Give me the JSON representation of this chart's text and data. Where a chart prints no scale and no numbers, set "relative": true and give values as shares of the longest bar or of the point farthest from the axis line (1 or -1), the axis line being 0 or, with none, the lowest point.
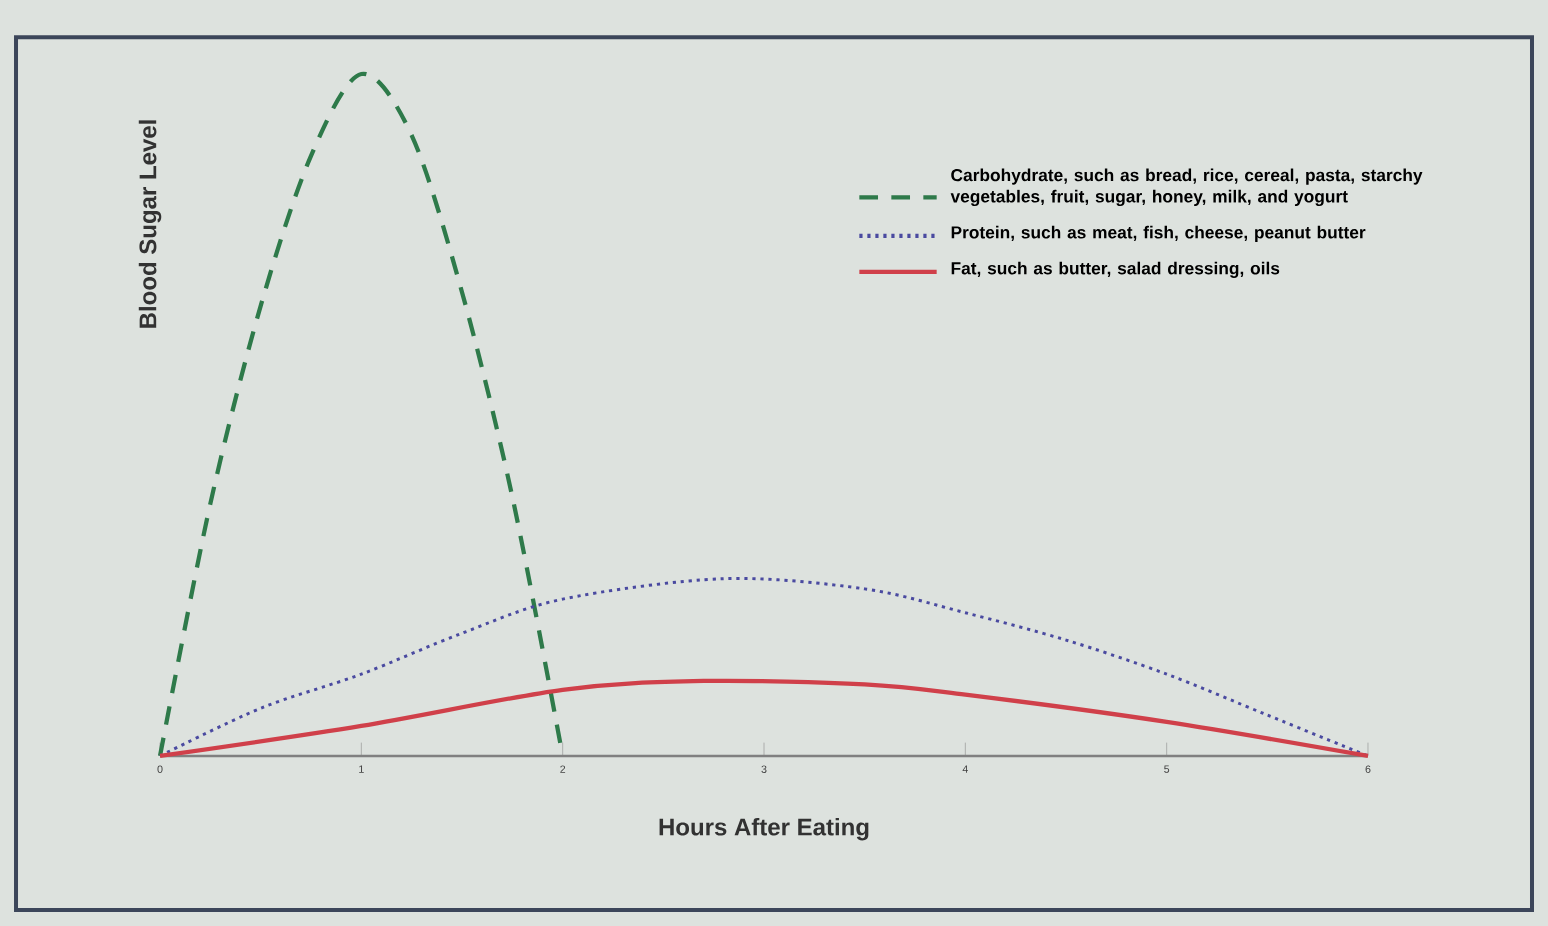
{
  "chart_data": {
    "type": "line",
    "relative": true,
    "xlabel": "Hours After Eating",
    "ylabel": "Blood Sugar Level",
    "xlim": [
      0,
      6
    ],
    "xticks": [
      0,
      1,
      2,
      3,
      4,
      5,
      6
    ],
    "legend": "top right",
    "series": [
      {
        "name": "Carbohydrate, such as bread, rice, cereal, pasta, starchy vegetables, fruit, sugar, honey, milk, and yogurt",
        "color": "#2e7a4a",
        "line_style": "dashed",
        "x": [
          0,
          0.25,
          0.5,
          0.75,
          1,
          1.25,
          1.5,
          1.75,
          2
        ],
        "values": [
          0,
          0.37,
          0.66,
          0.88,
          1,
          0.91,
          0.68,
          0.38,
          0
        ]
      },
      {
        "name": "Protein, such as meat, fish, cheese, peanut butter",
        "color": "#4a4aa0",
        "line_style": "dotted",
        "x": [
          0,
          0.5,
          1,
          1.5,
          2,
          2.8,
          3.5,
          4,
          4.5,
          5,
          5.5,
          6
        ],
        "values": [
          0,
          0.07,
          0.12,
          0.18,
          0.23,
          0.26,
          0.245,
          0.21,
          0.17,
          0.12,
          0.06,
          0
        ]
      },
      {
        "name": "Fat, such as butter, salad dressing, oils",
        "color": "#d0404a",
        "line_style": "solid",
        "x": [
          0,
          1,
          2,
          2.7,
          3.5,
          4,
          5,
          6
        ],
        "values": [
          0,
          0.044,
          0.097,
          0.11,
          0.105,
          0.09,
          0.05,
          0
        ]
      }
    ]
  }
}
